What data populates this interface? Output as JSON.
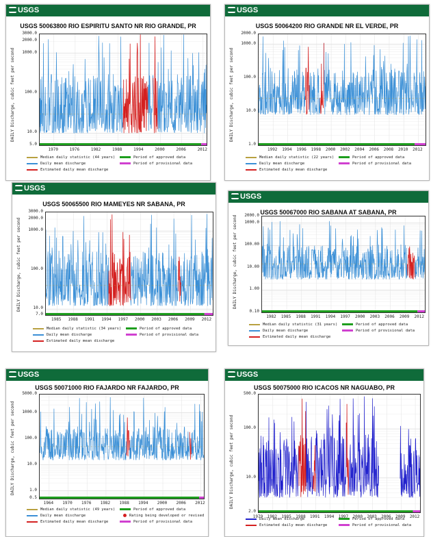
{
  "logo_text": "USGS",
  "colors": {
    "header": "#0f6b3a",
    "daily_mean": "#3a8fd6",
    "daily_mean_dark": "#2020cc",
    "estimated": "#d42020",
    "median": "#b8a040",
    "approved": "#1e9e1e",
    "provisional": "#d040d0"
  },
  "chart_data": [
    {
      "type": "line",
      "title": "USGS 50063800 RIO ESPIRITU SANTO NR RIO GRANDE, PR",
      "ylabel": "DAILY Discharge, cubic feet per second",
      "yscale": "log",
      "ylim": [
        5.0,
        3000.0
      ],
      "yticks": [
        "3000.0",
        "2000.0",
        "1000.0",
        "100.0",
        "10.0",
        "5.0"
      ],
      "ytick_values": [
        3000,
        2000,
        1000,
        100,
        10,
        5
      ],
      "xlim": [
        1966,
        2013
      ],
      "xticks": [
        "1970",
        "1976",
        "1982",
        "1988",
        "1994",
        "2000",
        "2006",
        "2012"
      ],
      "xtick_values": [
        1970,
        1976,
        1982,
        1988,
        1994,
        2000,
        2006,
        2012
      ],
      "series": [
        {
          "name": "Median daily statistic (44 years)",
          "kind": "median",
          "values": [
            30,
            30
          ]
        },
        {
          "name": "Daily mean discharge",
          "kind": "daily",
          "typical_range": [
            10,
            300
          ],
          "peak_max": 3000
        },
        {
          "name": "Estimated daily mean discharge",
          "kind": "estimated",
          "segments": [
            [
              1989.5,
              1996.5
            ],
            [
              1998,
              1999.2
            ]
          ]
        },
        {
          "name": "Period of approved data",
          "kind": "approved",
          "range": [
            1966,
            2011.5
          ]
        },
        {
          "name": "Period of provisional data",
          "kind": "provisional",
          "range": [
            2011.5,
            2013
          ]
        }
      ],
      "legend": [
        "Median daily statistic (44 years)",
        "Period of approved data",
        "Daily mean discharge",
        "Period of provisional data",
        "Estimated daily mean discharge"
      ],
      "legend_placement": "bottom",
      "grid": true
    },
    {
      "type": "line",
      "title": "USGS 50064200 RIO GRANDE NR EL VERDE, PR",
      "ylabel": "DAILY Discharge, cubic feet per second",
      "yscale": "log",
      "ylim": [
        1.0,
        2000.0
      ],
      "yticks": [
        "2000.0",
        "1000.0",
        "100.0",
        "10.0",
        "1.0"
      ],
      "ytick_values": [
        2000,
        1000,
        100,
        10,
        1
      ],
      "xlim": [
        1990,
        2013
      ],
      "xticks": [
        "1992",
        "1994",
        "1996",
        "1998",
        "2000",
        "2002",
        "2004",
        "2006",
        "2008",
        "2010",
        "2012"
      ],
      "xtick_values": [
        1992,
        1994,
        1996,
        1998,
        2000,
        2002,
        2004,
        2006,
        2008,
        2010,
        2012
      ],
      "series": [
        {
          "name": "Median daily statistic (22 years)",
          "kind": "median",
          "values": [
            25,
            25
          ]
        },
        {
          "name": "Daily mean discharge",
          "kind": "daily",
          "typical_range": [
            8,
            200
          ],
          "peak_max": 1800
        },
        {
          "name": "Estimated daily mean discharge",
          "kind": "estimated",
          "segments": [
            [
              1996.5,
              1997
            ],
            [
              1998.5,
              1999
            ]
          ]
        },
        {
          "name": "Period of approved data",
          "kind": "approved",
          "range": [
            1990,
            2011.5
          ]
        },
        {
          "name": "Period of provisional data",
          "kind": "provisional",
          "range": [
            2011.5,
            2013
          ]
        }
      ],
      "legend": [
        "Median daily statistic (22 years)",
        "Period of approved data",
        "Daily mean discharge",
        "Period of provisional data",
        "Estimated daily mean discharge"
      ],
      "legend_placement": "bottom",
      "grid": true
    },
    {
      "type": "line",
      "title": "USGS 50065500 RIO MAMEYES NR SABANA, PR",
      "ylabel": "DAILY Discharge, cubic feet per second",
      "yscale": "log",
      "ylim": [
        7.0,
        3000.0
      ],
      "yticks": [
        "3000.0",
        "2000.0",
        "1000.0",
        "100.0",
        "10.0",
        "7.0"
      ],
      "ytick_values": [
        3000,
        2000,
        1000,
        100,
        10,
        7
      ],
      "xlim": [
        1983,
        2013
      ],
      "xticks": [
        "1985",
        "1988",
        "1991",
        "1994",
        "1997",
        "2000",
        "2003",
        "2006",
        "2009",
        "2012"
      ],
      "xtick_values": [
        1985,
        1988,
        1991,
        1994,
        1997,
        2000,
        2003,
        2006,
        2009,
        2012
      ],
      "series": [
        {
          "name": "Median daily statistic (34 years)",
          "kind": "median",
          "values": [
            40,
            40
          ]
        },
        {
          "name": "Daily mean discharge",
          "kind": "daily",
          "typical_range": [
            12,
            300
          ],
          "peak_max": 3000
        },
        {
          "name": "Estimated daily mean discharge",
          "kind": "estimated",
          "segments": [
            [
              1994.3,
              1998.3
            ],
            [
              2006.8,
              2007.3
            ]
          ]
        },
        {
          "name": "Period of approved data",
          "kind": "approved",
          "range": [
            1983,
            2011.5
          ]
        },
        {
          "name": "Period of provisional data",
          "kind": "provisional",
          "range": [
            2011.5,
            2013
          ]
        }
      ],
      "legend": [
        "Median daily statistic (34 years)",
        "Period of approved data",
        "Daily mean discharge",
        "Period of provisional data",
        "Estimated daily mean discharge"
      ],
      "legend_placement": "bottom",
      "grid": true
    },
    {
      "type": "line",
      "title": "USGS 50067000 RIO SABANA AT SABANA, PR",
      "ylabel": "DAILY Discharge, cubic feet per second",
      "yscale": "log",
      "ylim": [
        0.1,
        2000.0
      ],
      "yticks": [
        "2000.0",
        "1000.0",
        "100.00",
        "10.00",
        "1.00",
        "0.10"
      ],
      "ytick_values": [
        2000,
        1000,
        100,
        10,
        1,
        0.1
      ],
      "xlim": [
        1980,
        2013
      ],
      "xticks": [
        "1982",
        "1985",
        "1988",
        "1991",
        "1994",
        "1997",
        "2000",
        "2003",
        "2006",
        "2009",
        "2012"
      ],
      "xtick_values": [
        1982,
        1985,
        1988,
        1991,
        1994,
        1997,
        2000,
        2003,
        2006,
        2009,
        2012
      ],
      "series": [
        {
          "name": "Median daily statistic (31 years)",
          "kind": "median",
          "values": [
            15,
            15
          ]
        },
        {
          "name": "Daily mean discharge",
          "kind": "daily",
          "typical_range": [
            3,
            100
          ],
          "peak_max": 1500
        },
        {
          "name": "Estimated daily mean discharge",
          "kind": "estimated",
          "segments": [
            [
              2009.5,
              2011
            ]
          ]
        },
        {
          "name": "Period of approved data",
          "kind": "approved",
          "range": [
            1980,
            2011.5
          ]
        },
        {
          "name": "Period of provisional data",
          "kind": "provisional",
          "range": [
            2011.5,
            2013
          ]
        }
      ],
      "legend": [
        "Median daily statistic (31 years)",
        "Period of approved data",
        "Daily mean discharge",
        "Period of provisional data",
        "Estimated daily mean discharge"
      ],
      "legend_placement": "bottom",
      "grid": true
    },
    {
      "type": "line",
      "title": "USGS 50071000 RIO FAJARDO NR FAJARDO, PR",
      "ylabel": "DAILY Discharge, cubic feet per second",
      "yscale": "log",
      "ylim": [
        0.5,
        5000.0
      ],
      "yticks": [
        "5000.0",
        "1000.0",
        "100.0",
        "10.0",
        "1.0",
        "0.5"
      ],
      "ytick_values": [
        5000,
        1000,
        100,
        10,
        1,
        0.5
      ],
      "xlim": [
        1961,
        2013
      ],
      "xticks": [
        "1964",
        "1970",
        "1976",
        "1982",
        "1988",
        "1994",
        "2000",
        "2006",
        "2012"
      ],
      "xtick_values": [
        1964,
        1970,
        1976,
        1982,
        1988,
        1994,
        2000,
        2006,
        2012
      ],
      "series": [
        {
          "name": "Median daily statistic (49 years)",
          "kind": "median",
          "values": [
            50,
            50
          ]
        },
        {
          "name": "Daily mean discharge",
          "kind": "daily",
          "typical_range": [
            15,
            300
          ],
          "peak_max": 4000
        },
        {
          "name": "Estimated daily mean discharge",
          "kind": "estimated",
          "segments": [
            [
              1988.5,
              1989.5
            ],
            [
              2008.5,
              2009
            ]
          ]
        },
        {
          "name": "Period of approved data",
          "kind": "approved",
          "range": [
            1961,
            2011.5
          ]
        },
        {
          "name": "Period of provisional data",
          "kind": "provisional",
          "range": [
            2011.5,
            2013
          ]
        }
      ],
      "legend": [
        "Median daily statistic (49 years)",
        "Period of approved data",
        "Daily mean discharge",
        "Rating being developed or revised",
        "Estimated daily mean discharge",
        "Period of provisional data"
      ],
      "legend_placement": "bottom",
      "grid": true
    },
    {
      "type": "line",
      "title": "USGS 50075000 RIO ICACOS NR NAGUABO, PR",
      "ylabel": "DAILY Discharge, cubic feet per second",
      "yscale": "log",
      "ylim": [
        2.0,
        500.0
      ],
      "yticks": [
        "500.0",
        "100.0",
        "10.0",
        "2.0"
      ],
      "ytick_values": [
        500,
        100,
        10,
        2
      ],
      "xlim": [
        1979,
        2013
      ],
      "xticks": [
        "1979",
        "1982",
        "1985",
        "1988",
        "1991",
        "1994",
        "1997",
        "2000",
        "2003",
        "2006",
        "2009",
        "2012"
      ],
      "xtick_values": [
        1979,
        1982,
        1985,
        1988,
        1991,
        1994,
        1997,
        2000,
        2003,
        2006,
        2009,
        2012
      ],
      "series": [
        {
          "name": "Daily mean discharge",
          "kind": "daily",
          "typical_range": [
            4,
            80
          ],
          "peak_max": 500,
          "gap": [
            2004.3,
            2008.8
          ]
        },
        {
          "name": "Estimated daily mean discharge",
          "kind": "estimated",
          "segments": [
            [
              1987.5,
              1989
            ],
            [
              1990.5,
              1991
            ],
            [
              1997.5,
              1998
            ]
          ]
        },
        {
          "name": "Period of approved data",
          "kind": "approved",
          "range": [
            1979,
            2011.5
          ]
        },
        {
          "name": "Period of provisional data",
          "kind": "provisional",
          "range": [
            2011.5,
            2013
          ]
        }
      ],
      "legend": [
        "Daily mean discharge",
        "Period of approved data",
        "Estimated daily mean discharge",
        "Period of provisional data"
      ],
      "legend_placement": "bottom",
      "grid": true
    }
  ]
}
